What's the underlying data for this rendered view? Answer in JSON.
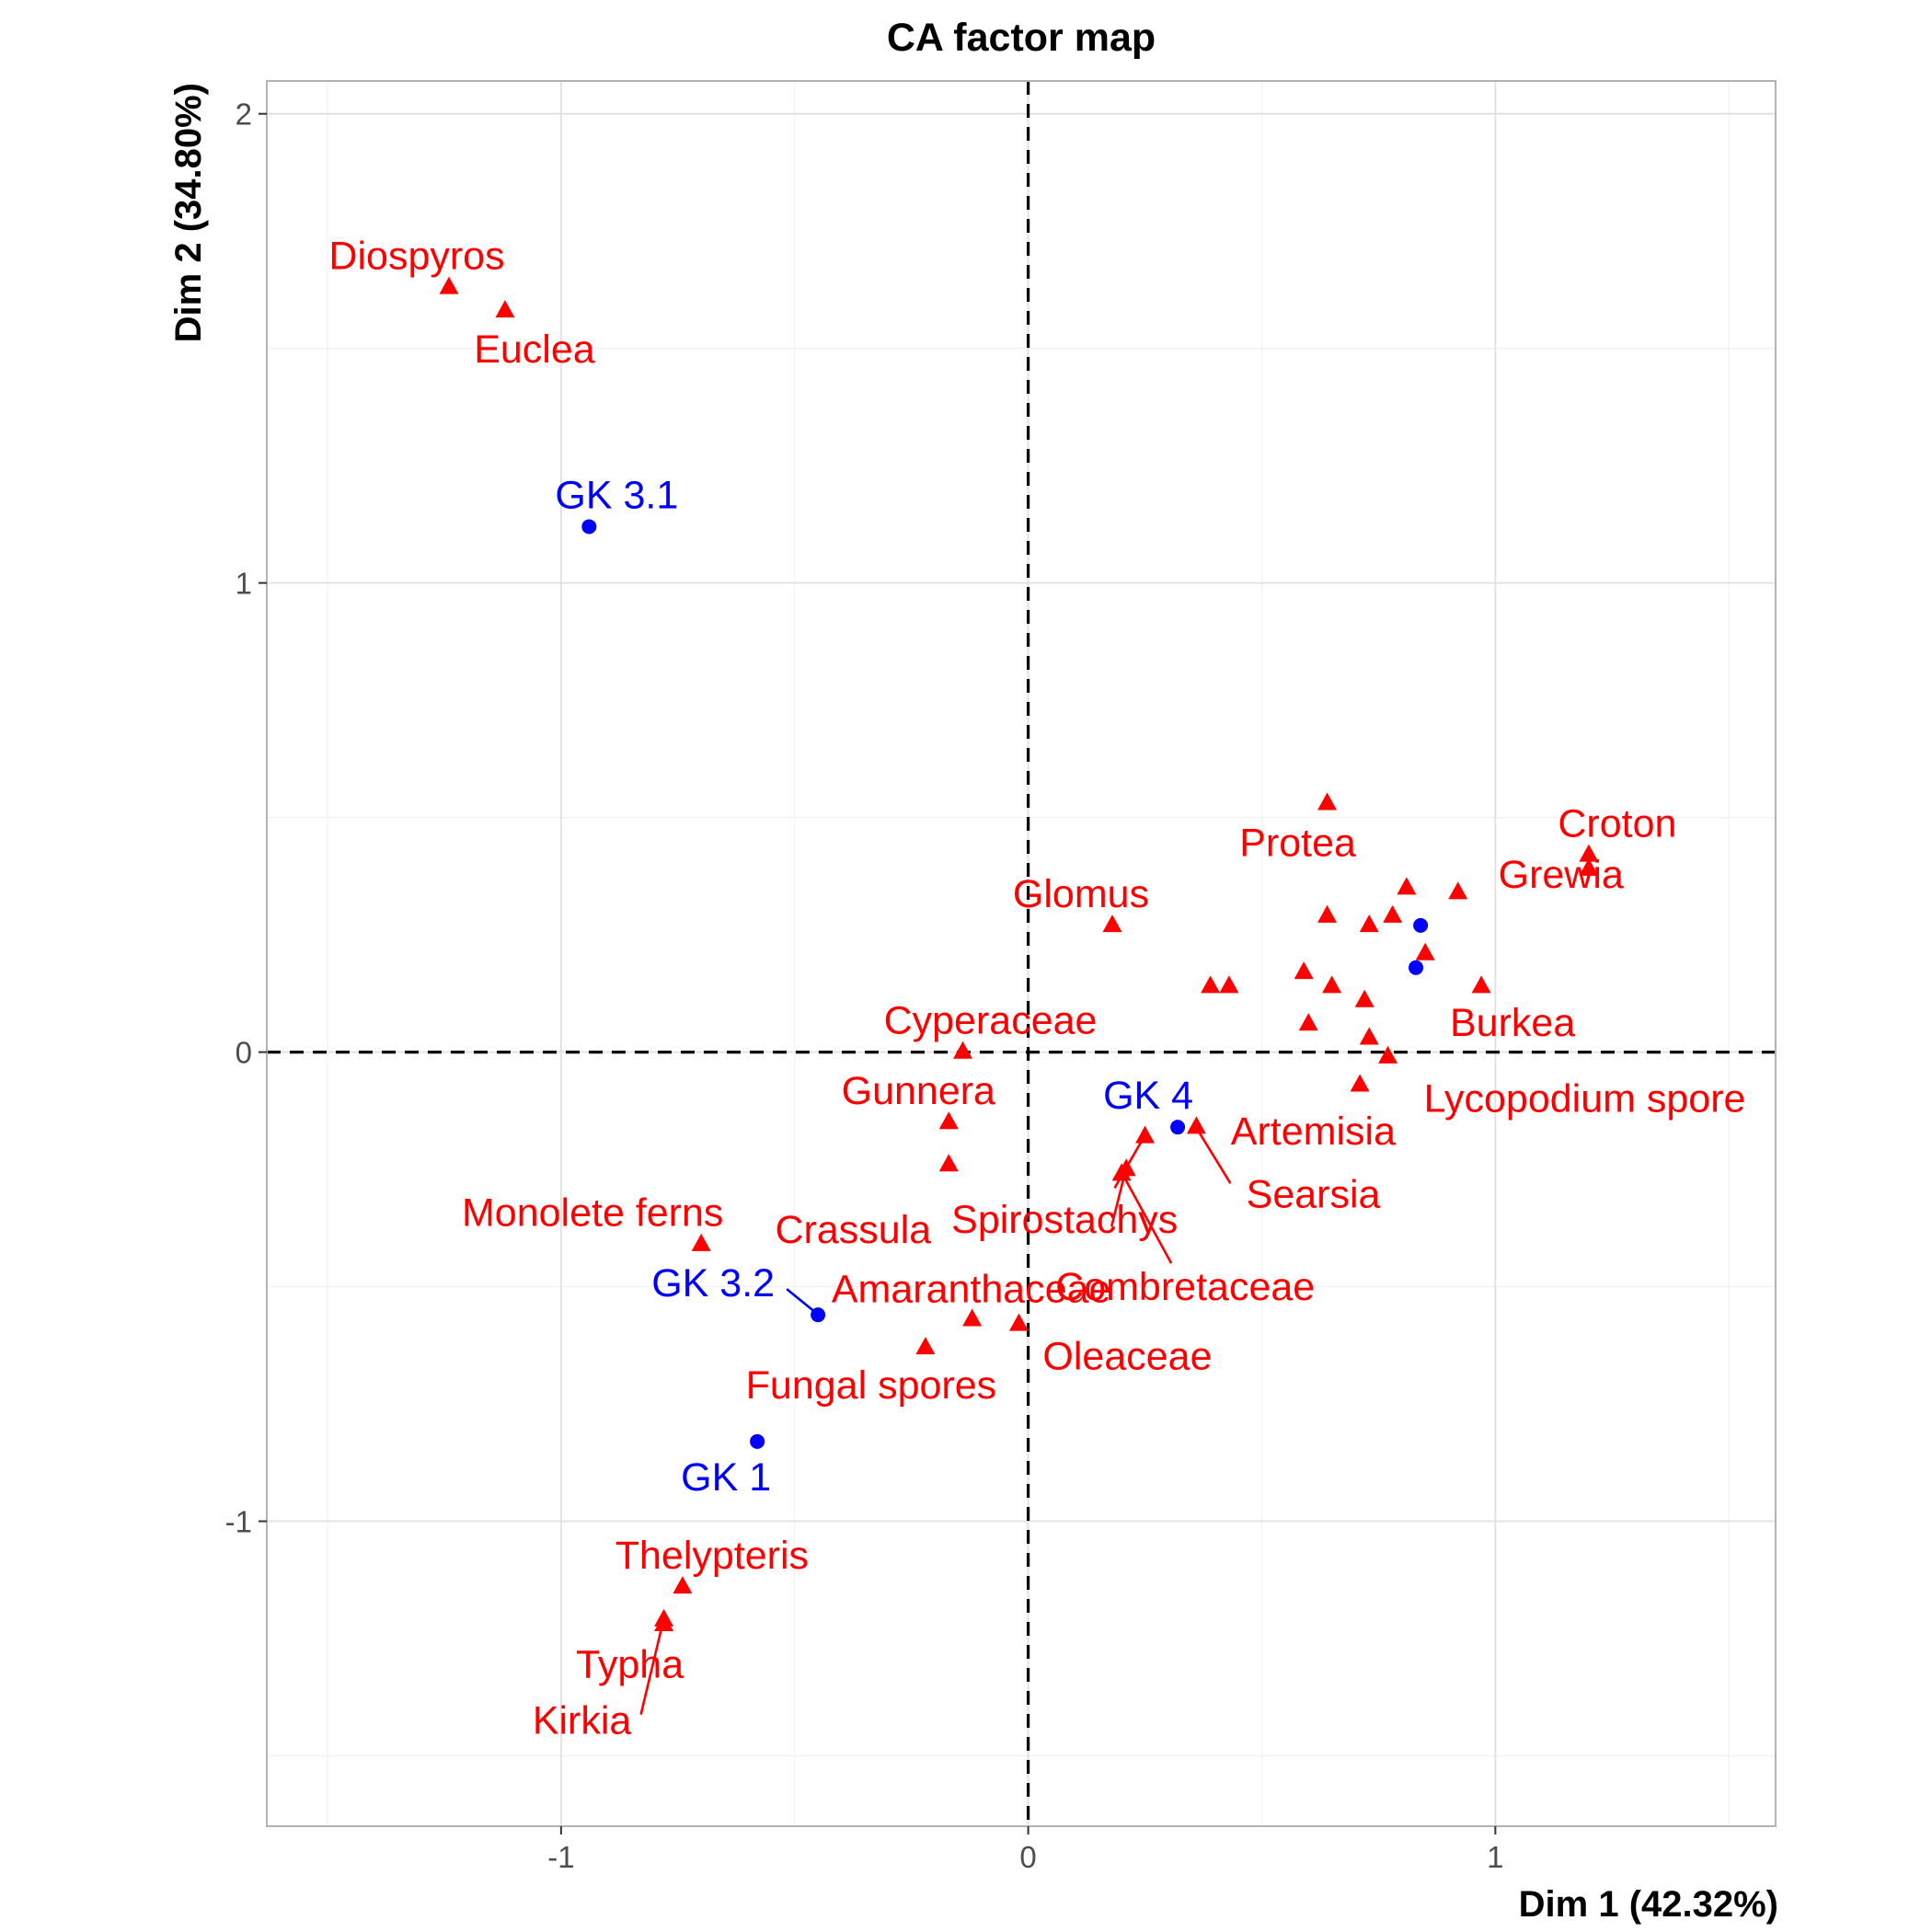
{
  "chart_data": {
    "type": "scatter",
    "title": "CA factor map",
    "xlabel": "Dim 1 (42.32%)",
    "ylabel": "Dim 2 (34.80%)",
    "xlim": [
      -1.63,
      1.6
    ],
    "ylim": [
      -1.65,
      2.07
    ],
    "xticks": [
      -1,
      0,
      1
    ],
    "yticks": [
      -1,
      0,
      1,
      2
    ],
    "grid": true,
    "dashed_origin_lines": true,
    "colors": {
      "rows": "#0000ff",
      "cols": "#ff0000"
    },
    "series": [
      {
        "marker": "circle",
        "color": "#0000ff",
        "points": [
          {
            "label": "GK 3.1",
            "x": -0.94,
            "y": 1.12
          },
          {
            "label": "GK 3.2",
            "x": -0.45,
            "y": -0.56
          },
          {
            "label": "GK 1",
            "x": -0.58,
            "y": -0.83
          },
          {
            "label": "GK 4",
            "x": 0.32,
            "y": -0.16
          },
          {
            "label": "",
            "x": 0.84,
            "y": 0.27
          },
          {
            "label": "",
            "x": 0.83,
            "y": 0.18
          }
        ]
      },
      {
        "marker": "triangle",
        "color": "#ff0000",
        "points": [
          {
            "label": "Diospyros",
            "x": -1.24,
            "y": 1.63
          },
          {
            "label": "Euclea",
            "x": -1.12,
            "y": 1.58
          },
          {
            "label": "Protea",
            "x": 0.64,
            "y": 0.53
          },
          {
            "label": "Croton",
            "x": 1.2,
            "y": 0.42
          },
          {
            "label": "",
            "x": 1.2,
            "y": 0.39
          },
          {
            "label": "Grewia",
            "x": 0.92,
            "y": 0.34
          },
          {
            "label": "",
            "x": 0.81,
            "y": 0.35
          },
          {
            "label": "Glomus",
            "x": 0.18,
            "y": 0.27
          },
          {
            "label": "",
            "x": 0.64,
            "y": 0.29
          },
          {
            "label": "",
            "x": 0.73,
            "y": 0.27
          },
          {
            "label": "",
            "x": 0.78,
            "y": 0.29
          },
          {
            "label": "",
            "x": 0.85,
            "y": 0.21
          },
          {
            "label": "",
            "x": 0.59,
            "y": 0.17
          },
          {
            "label": "",
            "x": 0.39,
            "y": 0.14
          },
          {
            "label": "",
            "x": 0.43,
            "y": 0.14
          },
          {
            "label": "",
            "x": 0.65,
            "y": 0.14
          },
          {
            "label": "",
            "x": 0.72,
            "y": 0.11
          },
          {
            "label": "Burkea",
            "x": 0.97,
            "y": 0.14
          },
          {
            "label": "",
            "x": 0.6,
            "y": 0.06
          },
          {
            "label": "",
            "x": 0.73,
            "y": 0.03
          },
          {
            "label": "Lycopodium spore",
            "x": 0.77,
            "y": -0.01
          },
          {
            "label": "",
            "x": 0.71,
            "y": -0.07
          },
          {
            "label": "Cyperaceae",
            "x": -0.14,
            "y": 0.0
          },
          {
            "label": "Gunnera",
            "x": -0.17,
            "y": -0.15
          },
          {
            "label": "Crassula",
            "x": -0.17,
            "y": -0.24
          },
          {
            "label": "Artemisia",
            "x": 0.36,
            "y": -0.16
          },
          {
            "label": "Searsia",
            "x": 0.25,
            "y": -0.18
          },
          {
            "label": "Spirostachys",
            "x": 0.21,
            "y": -0.25
          },
          {
            "label": "Combretaceae",
            "x": 0.2,
            "y": -0.26
          },
          {
            "label": "Monolete ferns",
            "x": -0.7,
            "y": -0.41
          },
          {
            "label": "Amaranthaceae",
            "x": -0.12,
            "y": -0.57
          },
          {
            "label": "Oleaceae",
            "x": -0.02,
            "y": -0.58
          },
          {
            "label": "Fungal spores",
            "x": -0.22,
            "y": -0.63
          },
          {
            "label": "Thelypteris",
            "x": -0.74,
            "y": -1.14
          },
          {
            "label": "Typha",
            "x": -0.78,
            "y": -1.21
          },
          {
            "label": "Kirkia",
            "x": -0.78,
            "y": -1.22
          }
        ]
      }
    ]
  }
}
